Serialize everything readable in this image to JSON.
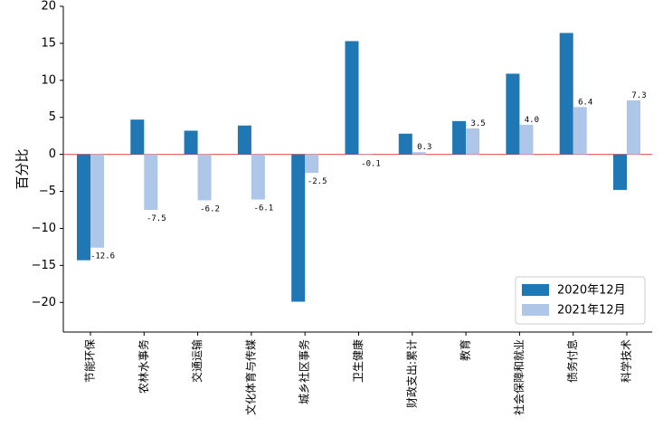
{
  "chart_data": {
    "type": "bar",
    "ylabel": "百分比",
    "xlabel": "",
    "ylim": [
      -24,
      20
    ],
    "yticks": [
      -20,
      -15,
      -10,
      -5,
      0,
      5,
      10,
      15,
      20
    ],
    "categories": [
      "节能环保",
      "农林水事务",
      "交通运输",
      "文化体育与传媒",
      "城乡社区事务",
      "卫生健康",
      "财政支出:累计",
      "教育",
      "社会保障和就业",
      "债务付息",
      "科学技术"
    ],
    "series": [
      {
        "name": "2020年12月",
        "color": "#1f77b4",
        "show_labels": false,
        "values": [
          -14.3,
          4.7,
          3.2,
          3.9,
          -19.9,
          15.3,
          2.8,
          4.5,
          10.9,
          16.4,
          -4.8
        ]
      },
      {
        "name": "2021年12月",
        "color": "#aec7e8",
        "show_labels": true,
        "values": [
          -12.6,
          -7.5,
          -6.2,
          -6.1,
          -2.5,
          -0.1,
          0.3,
          3.5,
          4.0,
          6.4,
          7.3
        ]
      }
    ],
    "zero_line_color": "#e8484a",
    "grid": false,
    "legend_position": "bottom-right"
  }
}
